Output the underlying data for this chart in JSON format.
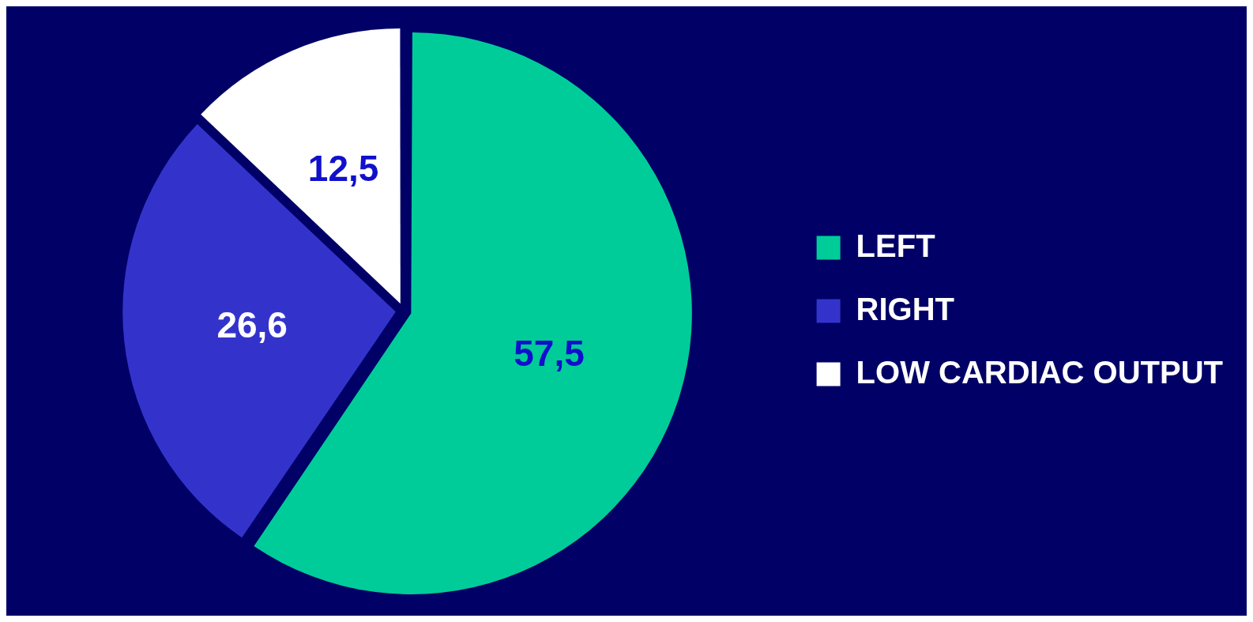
{
  "chart_data": {
    "type": "pie",
    "categories": [
      "LEFT",
      "RIGHT",
      "LOW CARDIAC OUTPUT"
    ],
    "values": [
      57.5,
      26.6,
      12.5
    ],
    "colors": [
      "#00cc99",
      "#3333cc",
      "#ffffff"
    ],
    "value_labels": [
      "57,5",
      "26,6",
      "12,5"
    ],
    "legend": "right"
  }
}
